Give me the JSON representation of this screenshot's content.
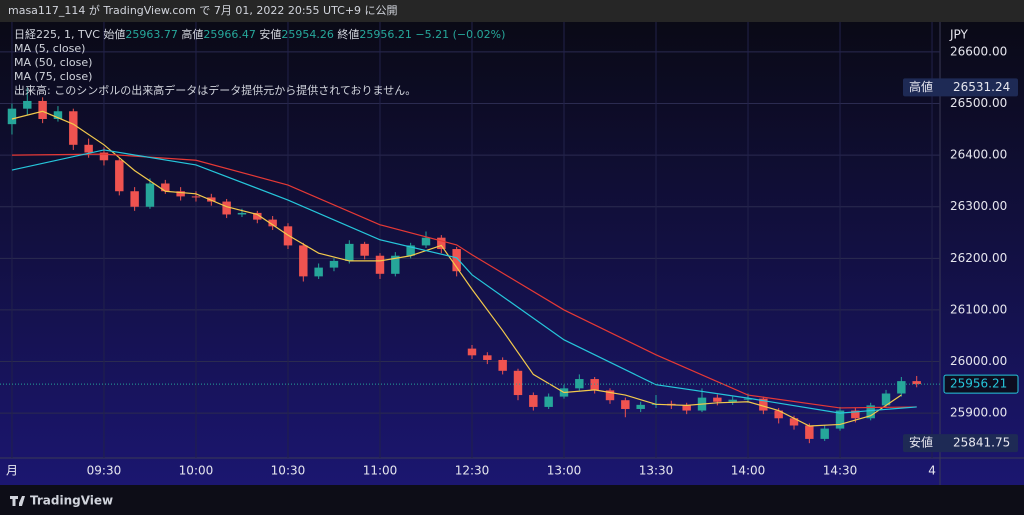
{
  "header": {
    "published": "masa117_114 が TradingView.com で 7月 01, 2022 20:55 UTC+9 に公開"
  },
  "footer": {
    "brand": "TradingView"
  },
  "chart_data": {
    "type": "candlestick",
    "title": "日経225, 1, TVC",
    "ohlc_labels": [
      "始値",
      "高値",
      "安値",
      "終値"
    ],
    "ohlc_values": [
      25963.77,
      25966.47,
      25954.26,
      25956.21
    ],
    "change": "−5.21 (−0.02%)",
    "volume_note": "出来高: このシンボルの出来高データはデータ提供元から提供されておりません。",
    "currency": "JPY",
    "up_color": "#26a69a",
    "down_color": "#ef5350",
    "ohlc": [
      [
        26460,
        26500,
        26440,
        26490
      ],
      [
        26490,
        26531.24,
        26478,
        26505
      ],
      [
        26505,
        26512,
        26462,
        26470
      ],
      [
        26470,
        26495,
        26465,
        26485
      ],
      [
        26485,
        26490,
        26410,
        26420
      ],
      [
        26420,
        26432,
        26395,
        26405
      ],
      [
        26405,
        26415,
        26380,
        26390
      ],
      [
        26390,
        26395,
        26322,
        26330
      ],
      [
        26330,
        26338,
        26292,
        26300
      ],
      [
        26300,
        26355,
        26296,
        26345
      ],
      [
        26345,
        26352,
        26325,
        26330
      ],
      [
        26330,
        26338,
        26312,
        26320
      ],
      [
        26320,
        26330,
        26310,
        26318
      ],
      [
        26318,
        26325,
        26302,
        26310
      ],
      [
        26310,
        26315,
        26278,
        26285
      ],
      [
        26285,
        26296,
        26280,
        26288
      ],
      [
        26288,
        26292,
        26268,
        26275
      ],
      [
        26275,
        26282,
        26255,
        26262
      ],
      [
        26262,
        26268,
        26218,
        26225
      ],
      [
        26225,
        26230,
        26155,
        26165
      ],
      [
        26165,
        26190,
        26160,
        26182
      ],
      [
        26182,
        26200,
        26175,
        26195
      ],
      [
        26195,
        26235,
        26190,
        26228
      ],
      [
        26228,
        26232,
        26198,
        26205
      ],
      [
        26205,
        26210,
        26160,
        26170
      ],
      [
        26170,
        26212,
        26165,
        26205
      ],
      [
        26205,
        26230,
        26200,
        26225
      ],
      [
        26225,
        26252,
        26220,
        26240
      ],
      [
        26240,
        26245,
        26210,
        26218
      ],
      [
        26218,
        26222,
        26165,
        26175
      ],
      [
        26025,
        26032,
        26005,
        26012
      ],
      [
        26012,
        26018,
        25995,
        26003
      ],
      [
        26003,
        26008,
        25975,
        25982
      ],
      [
        25982,
        25986,
        25925,
        25935
      ],
      [
        25935,
        25940,
        25905,
        25912
      ],
      [
        25912,
        25938,
        25908,
        25932
      ],
      [
        25932,
        25955,
        25928,
        25948
      ],
      [
        25948,
        25975,
        25944,
        25966
      ],
      [
        25966,
        25970,
        25938,
        25944
      ],
      [
        25944,
        25948,
        25918,
        25925
      ],
      [
        25925,
        25930,
        25892,
        25908
      ],
      [
        25908,
        25922,
        25902,
        25916
      ],
      [
        25916,
        25935,
        25910,
        25918
      ],
      [
        25918,
        25924,
        25908,
        25915
      ],
      [
        25915,
        25920,
        25898,
        25905
      ],
      [
        25905,
        25948,
        25902,
        25930
      ],
      [
        25930,
        25936,
        25915,
        25922
      ],
      [
        25922,
        25932,
        25916,
        25926
      ],
      [
        25926,
        25938,
        25920,
        25928
      ],
      [
        25928,
        25932,
        25898,
        25905
      ],
      [
        25905,
        25910,
        25880,
        25890
      ],
      [
        25890,
        25895,
        25868,
        25876
      ],
      [
        25876,
        25880,
        25841.75,
        25850
      ],
      [
        25850,
        25876,
        25846,
        25870
      ],
      [
        25870,
        25912,
        25866,
        25905
      ],
      [
        25905,
        25910,
        25882,
        25890
      ],
      [
        25890,
        25920,
        25886,
        25915
      ],
      [
        25915,
        25945,
        25910,
        25938
      ],
      [
        25938,
        25970,
        25932,
        25962
      ],
      [
        25962,
        25972,
        25950,
        25956.21
      ]
    ],
    "series": [
      {
        "name": "MA (5, close)",
        "color": "#f2c94c",
        "x": [
          0,
          2,
          4,
          6,
          8,
          10,
          12,
          14,
          16,
          18,
          20,
          22,
          24,
          26,
          28,
          30,
          32,
          34,
          36,
          38,
          40,
          42,
          44,
          46,
          48,
          50,
          52,
          54,
          56,
          58
        ],
        "values": [
          26470,
          26485,
          26460,
          26420,
          26370,
          26330,
          26325,
          26300,
          26285,
          26245,
          26210,
          26195,
          26195,
          26205,
          26225,
          26140,
          26060,
          25975,
          25940,
          25945,
          25935,
          25917,
          25915,
          25920,
          25922,
          25905,
          25875,
          25878,
          25895,
          25935
        ]
      },
      {
        "name": "MA (50, close)",
        "color": "#e53935",
        "x": [
          0,
          6,
          12,
          18,
          24,
          29,
          30,
          36,
          42,
          48,
          54,
          59
        ],
        "values": [
          26400,
          26402,
          26390,
          26342,
          26265,
          26226,
          26207,
          26100,
          26013,
          25935,
          25910,
          25912
        ]
      },
      {
        "name": "MA (75, close)",
        "color": "#26c6da",
        "x": [
          0,
          6,
          12,
          18,
          24,
          29,
          30,
          36,
          42,
          48,
          54,
          59
        ],
        "values": [
          26371,
          26410,
          26381,
          26313,
          26236,
          26201,
          26168,
          26042,
          25955,
          25929,
          25900,
          25912
        ]
      }
    ],
    "xlim": [
      -0.78,
      60.52
    ],
    "xticks": [
      {
        "value": 0,
        "label": "月"
      },
      {
        "value": 6,
        "label": "09:30"
      },
      {
        "value": 12,
        "label": "10:00"
      },
      {
        "value": 18,
        "label": "10:30"
      },
      {
        "value": 24,
        "label": "11:00"
      },
      {
        "value": 30,
        "label": "12:30"
      },
      {
        "value": 36,
        "label": "13:00"
      },
      {
        "value": 42,
        "label": "13:30"
      },
      {
        "value": 48,
        "label": "14:00"
      },
      {
        "value": 54,
        "label": "14:30"
      },
      {
        "value": 60,
        "label": "4"
      }
    ],
    "ylim": [
      25813,
      26658
    ],
    "yticks": [
      {
        "value": 26600,
        "label": "26600.00"
      },
      {
        "value": 26500,
        "label": "26500.00"
      },
      {
        "value": 26400,
        "label": "26400.00"
      },
      {
        "value": 26300,
        "label": "26300.00"
      },
      {
        "value": 26200,
        "label": "26200.00"
      },
      {
        "value": 26100,
        "label": "26100.00"
      },
      {
        "value": 26000,
        "label": "26000.00"
      },
      {
        "value": 25900,
        "label": "25900.00"
      }
    ],
    "grid": true,
    "high_marker": {
      "label": "高値",
      "value": 26531.24
    },
    "low_marker": {
      "label": "安値",
      "value": 25841.75
    },
    "last_price": 25956.21
  }
}
